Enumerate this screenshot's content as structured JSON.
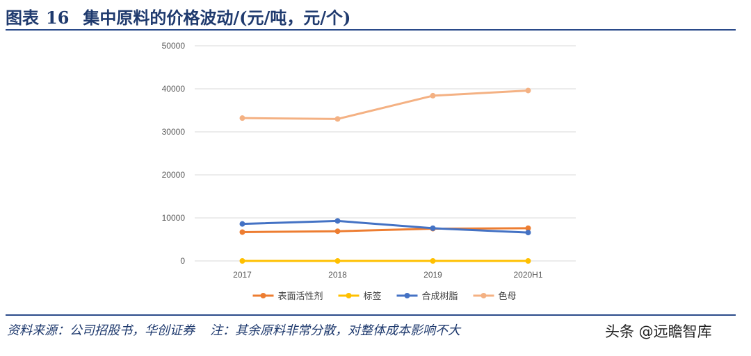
{
  "header": {
    "label": "图表",
    "number": "16",
    "title": "集中原料的价格波动/(元/吨，元/个)"
  },
  "chart_data": {
    "type": "line",
    "categories": [
      "2017",
      "2018",
      "2019",
      "2020H1"
    ],
    "yticks": [
      "0",
      "10000",
      "20000",
      "30000",
      "40000",
      "50000"
    ],
    "ylim": [
      0,
      50000
    ],
    "grid": true,
    "legend_position": "bottom",
    "series": [
      {
        "name": "表面活性剂",
        "color": "#ED7D31",
        "values": [
          6700,
          6900,
          7500,
          7600
        ]
      },
      {
        "name": "标签",
        "color": "#FFC000",
        "values": [
          0,
          0,
          0,
          0
        ]
      },
      {
        "name": "合成树脂",
        "color": "#4472C4",
        "values": [
          8600,
          9300,
          7600,
          6600
        ]
      },
      {
        "name": "色母",
        "color": "#F4B183",
        "values": [
          33200,
          33000,
          38400,
          39600
        ]
      }
    ]
  },
  "footer": {
    "source": "资料来源：公司招股书，华创证券",
    "note": "注：其余原料非常分散，对整体成本影响不大",
    "watermark": "头条 @远瞻智库"
  }
}
